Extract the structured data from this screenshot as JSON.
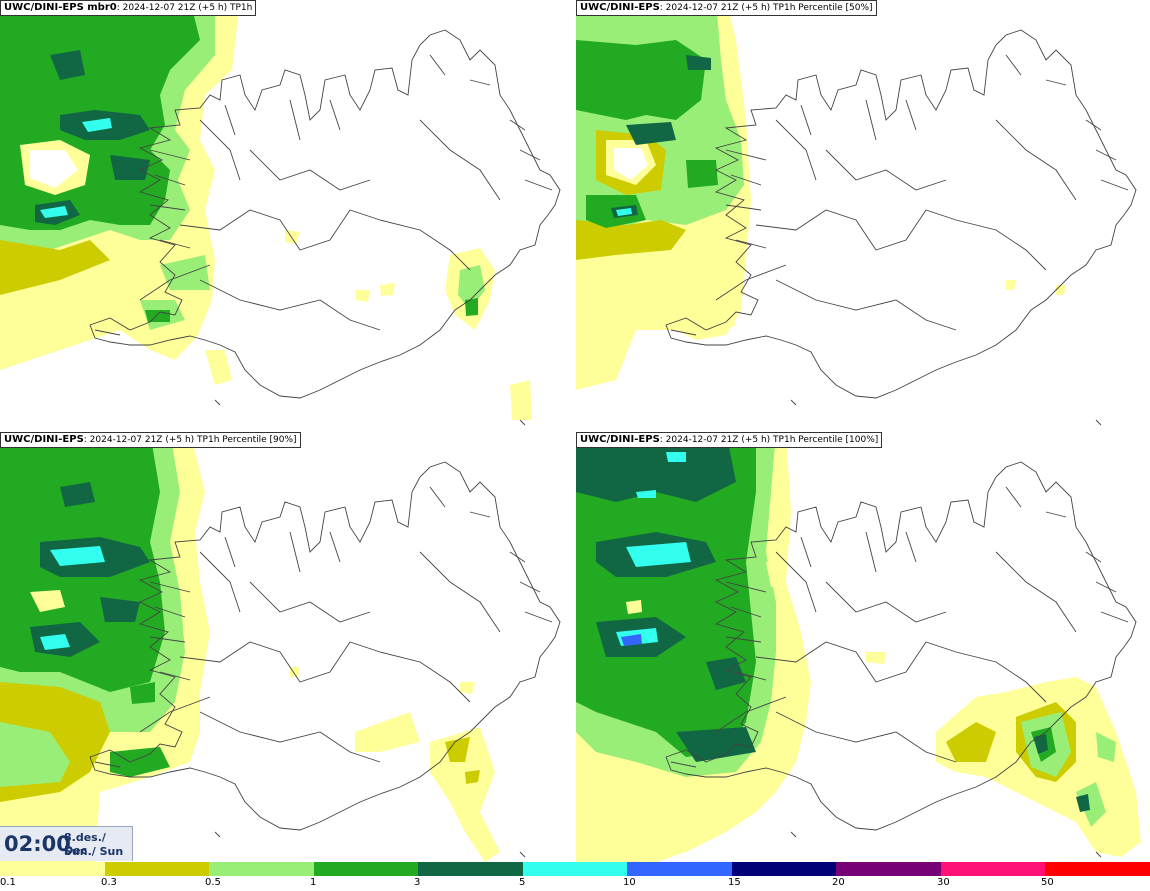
{
  "panels": [
    {
      "model": "UWC/DINI-EPS mbr0",
      "sep": ": ",
      "info": "2024-12-07 21Z (+5 h)",
      "product": "TP1h"
    },
    {
      "model": "UWC/DINI-EPS",
      "sep": ": ",
      "info": "2024-12-07 21Z (+5 h)",
      "product": "TP1h Percentile [50%]"
    },
    {
      "model": "UWC/DINI-EPS",
      "sep": ": ",
      "info": "2024-12-07 21Z (+5 h)",
      "product": "TP1h Percentile [90%]"
    },
    {
      "model": "UWC/DINI-EPS",
      "sep": ": ",
      "info": "2024-12-07 21Z (+5 h)",
      "product": "TP1h Percentile [100%]"
    }
  ],
  "valid_time": {
    "time": "02:00",
    "date": "8.des./ Dec",
    "day": "Sun./ Sun"
  },
  "legend": {
    "colors": [
      "#ffff99",
      "#cccc00",
      "#99ee77",
      "#22aa22",
      "#116644",
      "#33ffee",
      "#3366ff",
      "#000077",
      "#770077",
      "#ff1177",
      "#ff0000"
    ],
    "ticks": [
      "0.1",
      "0.3",
      "0.5",
      "1",
      "3",
      "5",
      "10",
      "15",
      "20",
      "30",
      "50"
    ]
  }
}
